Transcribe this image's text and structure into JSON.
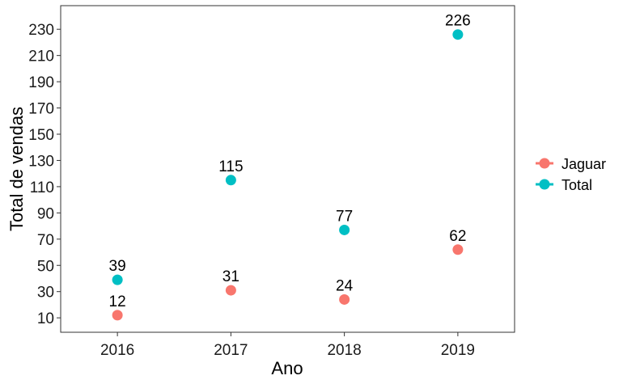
{
  "chart_data": {
    "type": "scatter",
    "title": "",
    "xlabel": "Ano",
    "ylabel": "Total de vendas",
    "categories": [
      "2016",
      "2017",
      "2018",
      "2019"
    ],
    "yticks": [
      10,
      30,
      50,
      70,
      90,
      110,
      130,
      150,
      170,
      190,
      210,
      230
    ],
    "ylim": [
      -1,
      248
    ],
    "grid": false,
    "legend_position": "right",
    "series": [
      {
        "name": "Jaguar",
        "color": "#F8766D",
        "values": [
          12,
          31,
          24,
          62
        ]
      },
      {
        "name": "Total",
        "color": "#00BFC4",
        "values": [
          39,
          115,
          77,
          226
        ]
      }
    ]
  }
}
